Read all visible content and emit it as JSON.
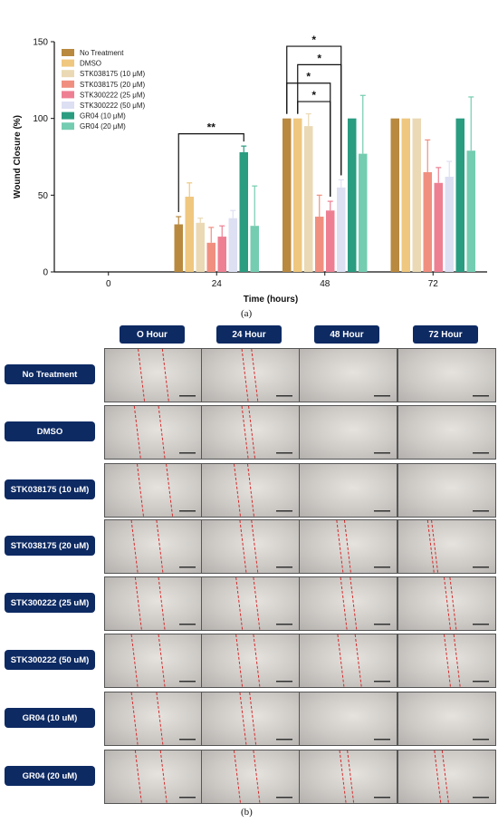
{
  "chart_data": {
    "type": "bar",
    "ylabel": "Wound Closure (%)",
    "xlabel": "Time (hours)",
    "ylim": [
      0,
      150
    ],
    "yticks": [
      0,
      50,
      100,
      150
    ],
    "categories": [
      "0",
      "24",
      "48",
      "72"
    ],
    "legend_position": "top-left",
    "series": [
      {
        "name": "No Treatment",
        "color": "#b8893f",
        "values": [
          0,
          31,
          100,
          100
        ],
        "errors": [
          0,
          5,
          0,
          0
        ]
      },
      {
        "name": "DMSO",
        "color": "#efc77e",
        "values": [
          0,
          49,
          100,
          100
        ],
        "errors": [
          0,
          9,
          0,
          0
        ]
      },
      {
        "name": "STK038175 (10 μM)",
        "color": "#ead9b4",
        "values": [
          0,
          32,
          95,
          100
        ],
        "errors": [
          0,
          3,
          8,
          0
        ]
      },
      {
        "name": "STK038175 (20 μM)",
        "color": "#f08f80",
        "values": [
          0,
          19,
          36,
          65
        ],
        "errors": [
          0,
          10,
          14,
          21
        ]
      },
      {
        "name": "STK300222 (25 μM)",
        "color": "#ee7f93",
        "values": [
          0,
          23,
          40,
          58
        ],
        "errors": [
          0,
          7,
          6,
          10
        ]
      },
      {
        "name": "STK300222 (50 μM)",
        "color": "#dde0f3",
        "values": [
          0,
          35,
          55,
          62
        ],
        "errors": [
          0,
          5,
          5,
          10
        ]
      },
      {
        "name": "GR04 (10 μM)",
        "color": "#2a9c80",
        "values": [
          0,
          78,
          100,
          100
        ],
        "errors": [
          0,
          4,
          0,
          0
        ]
      },
      {
        "name": "GR04 (20 μM)",
        "color": "#74ccb1",
        "values": [
          0,
          30,
          77,
          79
        ],
        "errors": [
          0,
          26,
          38,
          35
        ]
      }
    ],
    "significance": [
      {
        "label": "**",
        "category": "24",
        "from_series": 0,
        "to_series": 6
      },
      {
        "label": "*",
        "category": "48",
        "from_series": 0,
        "to_series": 5
      },
      {
        "label": "*",
        "category": "48",
        "from_series": 0,
        "to_series": 4
      },
      {
        "label": "*",
        "category": "48",
        "from_series": 1,
        "to_series": 5
      },
      {
        "label": "*",
        "category": "48",
        "from_series": 1,
        "to_series": 4
      }
    ]
  },
  "captions": {
    "a": "(a)",
    "b": "(b)"
  },
  "panel_b": {
    "time_headers": [
      "O Hour",
      "24 Hour",
      "48 Hour",
      "72 Hour"
    ],
    "row_labels": [
      "No Treatment",
      "DMSO",
      "STK038175 (10 uM)",
      "STK038175 (20 uM)",
      "STK300222 (25 uM)",
      "STK300222 (50 uM)",
      "GR04 (10 uM)",
      "GR04 (20 uM)"
    ],
    "wound_line_color": "#d42a2a",
    "scale_bar_icon": "scale-bar-icon"
  }
}
